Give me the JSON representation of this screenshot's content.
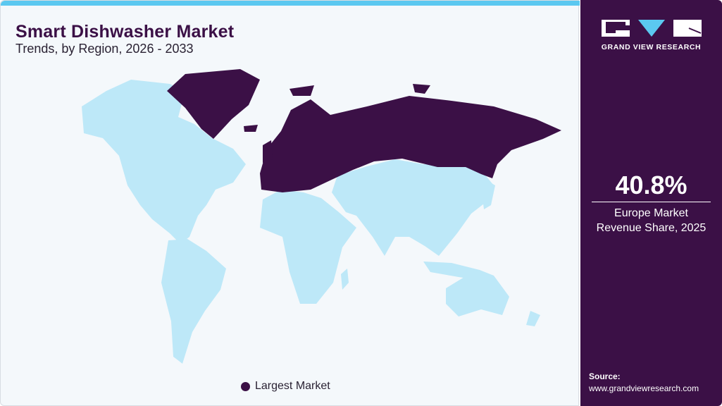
{
  "header": {
    "title": "Smart Dishwasher Market",
    "subtitle": "Trends, by Region, 2026 - 2033"
  },
  "map": {
    "highlighted_region": "Europe",
    "colors": {
      "largest_market": "#3b1046",
      "other": "#bde8f8",
      "accent": "#5bc8f0"
    }
  },
  "legend": {
    "label": "Largest Market"
  },
  "sidebar": {
    "logo_text": "GRAND VIEW RESEARCH",
    "stat_value": "40.8%",
    "stat_label_line1": "Europe Market",
    "stat_label_line2": "Revenue Share, 2025",
    "source_label": "Source:",
    "source_url": "www.grandviewresearch.com"
  }
}
